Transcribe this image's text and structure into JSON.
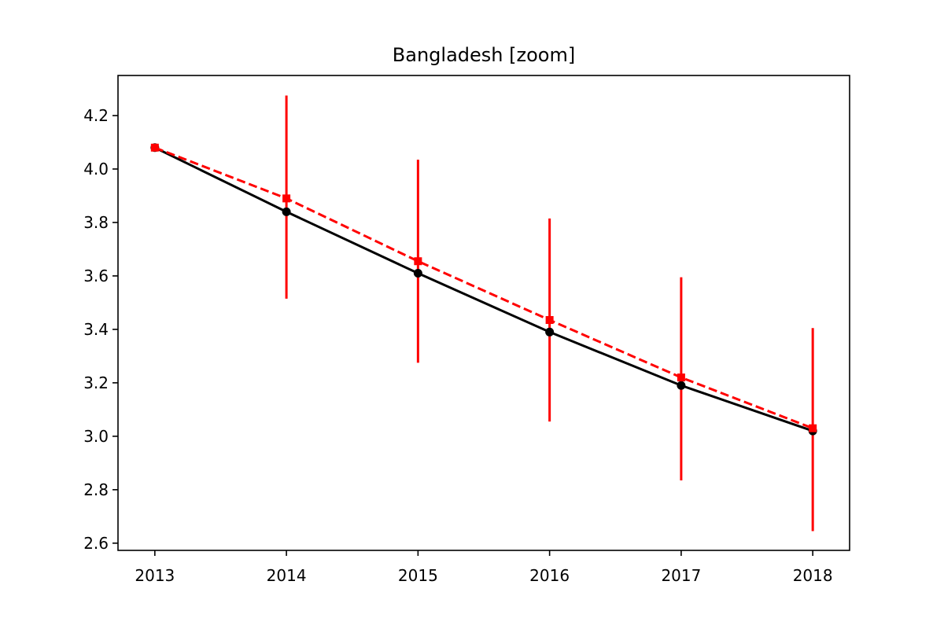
{
  "chart_data": {
    "type": "line",
    "title": "Bangladesh [zoom]",
    "xlabel": "",
    "ylabel": "",
    "x": [
      2013,
      2014,
      2015,
      2016,
      2017,
      2018
    ],
    "xlim": [
      2012.72,
      2018.28
    ],
    "ylim": [
      2.573,
      4.35
    ],
    "x_ticks": [
      2013,
      2014,
      2015,
      2016,
      2017,
      2018
    ],
    "y_ticks": [
      2.6,
      2.8,
      3.0,
      3.2,
      3.4,
      3.6,
      3.8,
      4.0,
      4.2
    ],
    "y_tick_labels": [
      "2.6",
      "2.8",
      "3.0",
      "3.2",
      "3.4",
      "3.6",
      "3.8",
      "4.0",
      "4.2"
    ],
    "grid": false,
    "series": [
      {
        "style": "solid",
        "marker": "circle",
        "color": "#000000",
        "values": [
          4.08,
          3.84,
          3.61,
          3.39,
          3.19,
          3.02
        ]
      },
      {
        "style": "dashed",
        "marker": "square",
        "color": "#ff0000",
        "values": [
          4.08,
          3.89,
          3.655,
          3.435,
          3.22,
          3.03
        ],
        "error_low": [
          null,
          3.515,
          3.275,
          3.055,
          2.835,
          2.645
        ],
        "error_high": [
          null,
          4.275,
          4.035,
          3.815,
          3.595,
          3.405
        ]
      }
    ]
  }
}
